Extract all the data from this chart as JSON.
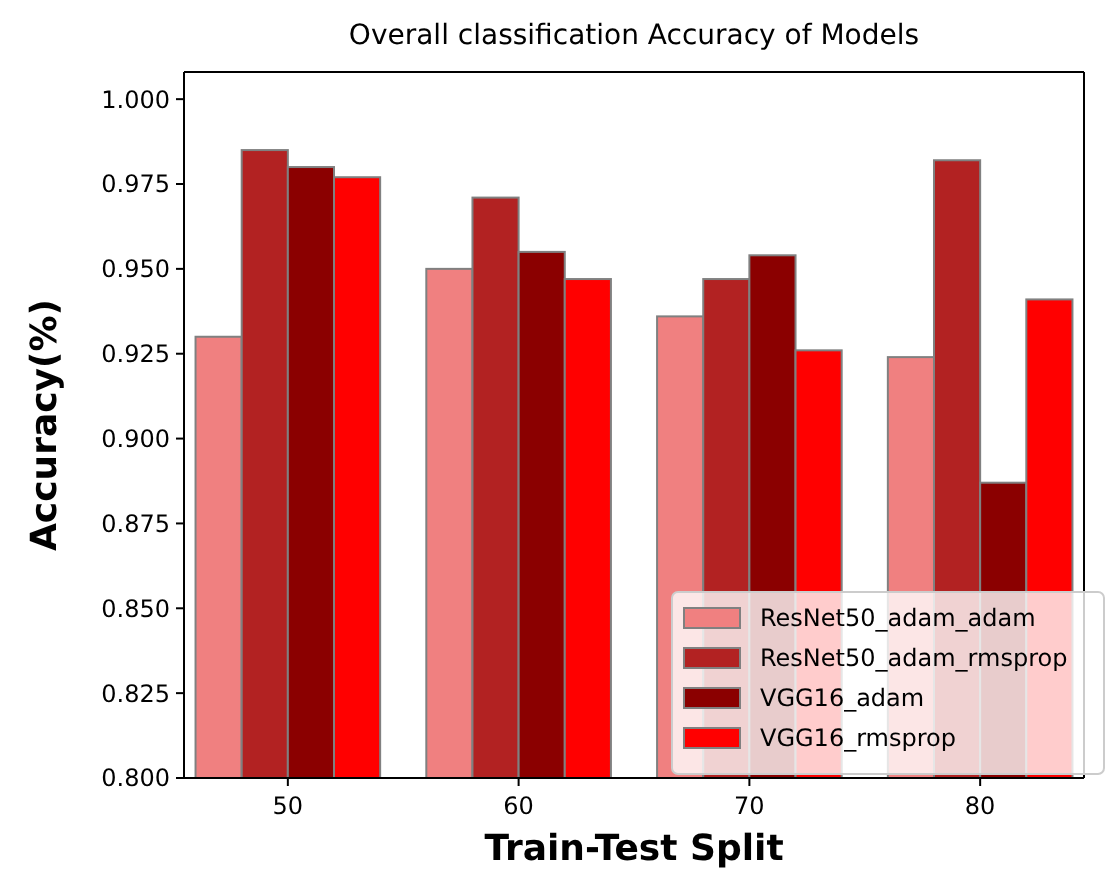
{
  "chart_data": {
    "type": "bar",
    "title": "Overall classification Accuracy of Models",
    "xlabel": "Train-Test Split",
    "ylabel": "Accuracy(%)",
    "categories": [
      "50",
      "60",
      "70",
      "80"
    ],
    "series": [
      {
        "name": "ResNet50_adam_adam",
        "color": "#f08080",
        "values": [
          0.93,
          0.95,
          0.936,
          0.924
        ]
      },
      {
        "name": "ResNet50_adam_rmsprop",
        "color": "#b22222",
        "values": [
          0.985,
          0.971,
          0.947,
          0.982
        ]
      },
      {
        "name": "VGG16_adam",
        "color": "#8b0000",
        "values": [
          0.98,
          0.955,
          0.954,
          0.887
        ]
      },
      {
        "name": "VGG16_rmsprop",
        "color": "#ff0000",
        "values": [
          0.977,
          0.947,
          0.926,
          0.941
        ]
      }
    ],
    "ylim": [
      0.8,
      1.008
    ],
    "yticks": [
      {
        "value": 0.8,
        "label": "0.800"
      },
      {
        "value": 0.825,
        "label": "0.825"
      },
      {
        "value": 0.85,
        "label": "0.850"
      },
      {
        "value": 0.875,
        "label": "0.875"
      },
      {
        "value": 0.9,
        "label": "0.900"
      },
      {
        "value": 0.925,
        "label": "0.925"
      },
      {
        "value": 0.95,
        "label": "0.950"
      },
      {
        "value": 0.975,
        "label": "0.975"
      },
      {
        "value": 1.0,
        "label": "1.000"
      }
    ],
    "legend": "bottom right"
  }
}
